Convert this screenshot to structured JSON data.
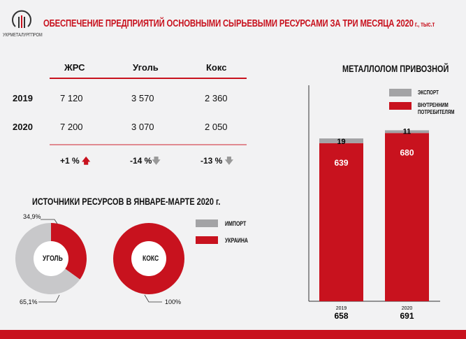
{
  "header": {
    "logo_text": "УКРМЕТАЛУРГПРОМ",
    "title": "ОБЕСПЕЧЕНИЕ ПРЕДПРИЯТИЙ ОСНОВНЫМИ СЫРЬЕВЫМИ РЕСУРСАМИ ЗА ТРИ МЕСЯЦА 2020",
    "title_unit": " г., тыс.т"
  },
  "table": {
    "columns": [
      "ЖРС",
      "Уголь",
      "Кокс"
    ],
    "rows": [
      {
        "year": "2019",
        "values": [
          "7 120",
          "3 570",
          "2 360"
        ]
      },
      {
        "year": "2020",
        "values": [
          "7 200",
          "3 070",
          "2 050"
        ]
      }
    ],
    "changes": [
      {
        "text": "+1 %",
        "dir": "up"
      },
      {
        "text": "-14 %",
        "dir": "down"
      },
      {
        "text": "-13 %",
        "dir": "down"
      }
    ]
  },
  "colors": {
    "red": "#c8121e",
    "gray": "#a3a3a5",
    "light_gray": "#c8c8ca"
  },
  "chart_data": [
    {
      "type": "pie",
      "title": "ИСТОЧНИКИ РЕСУРСОВ В ЯНВАРЕ-МАРТЕ 2020 г.",
      "center_label": "УГОЛЬ",
      "slices": [
        {
          "name": "УКРАИНА",
          "value": 34.9,
          "label": "34,9%"
        },
        {
          "name": "ИМПОРТ",
          "value": 65.1,
          "label": "65,1%"
        }
      ]
    },
    {
      "type": "pie",
      "center_label": "КОКС",
      "slices": [
        {
          "name": "УКРАИНА",
          "value": 100,
          "label": "100%"
        }
      ]
    },
    {
      "type": "bar",
      "stacked": true,
      "title": "МЕТАЛЛОЛОМ ПРИВОЗНОЙ",
      "categories": [
        "2019",
        "2020"
      ],
      "totals": [
        "658",
        "691"
      ],
      "series": [
        {
          "name": "ВНУТРЕННИМ ПОТРЕБИТЕЛЯМ",
          "values": [
            639,
            680
          ]
        },
        {
          "name": "ЭКСПОРТ",
          "values": [
            19,
            11
          ]
        }
      ]
    }
  ],
  "pie_legend": [
    "ИМПОРТ",
    "УКРАИНА"
  ]
}
